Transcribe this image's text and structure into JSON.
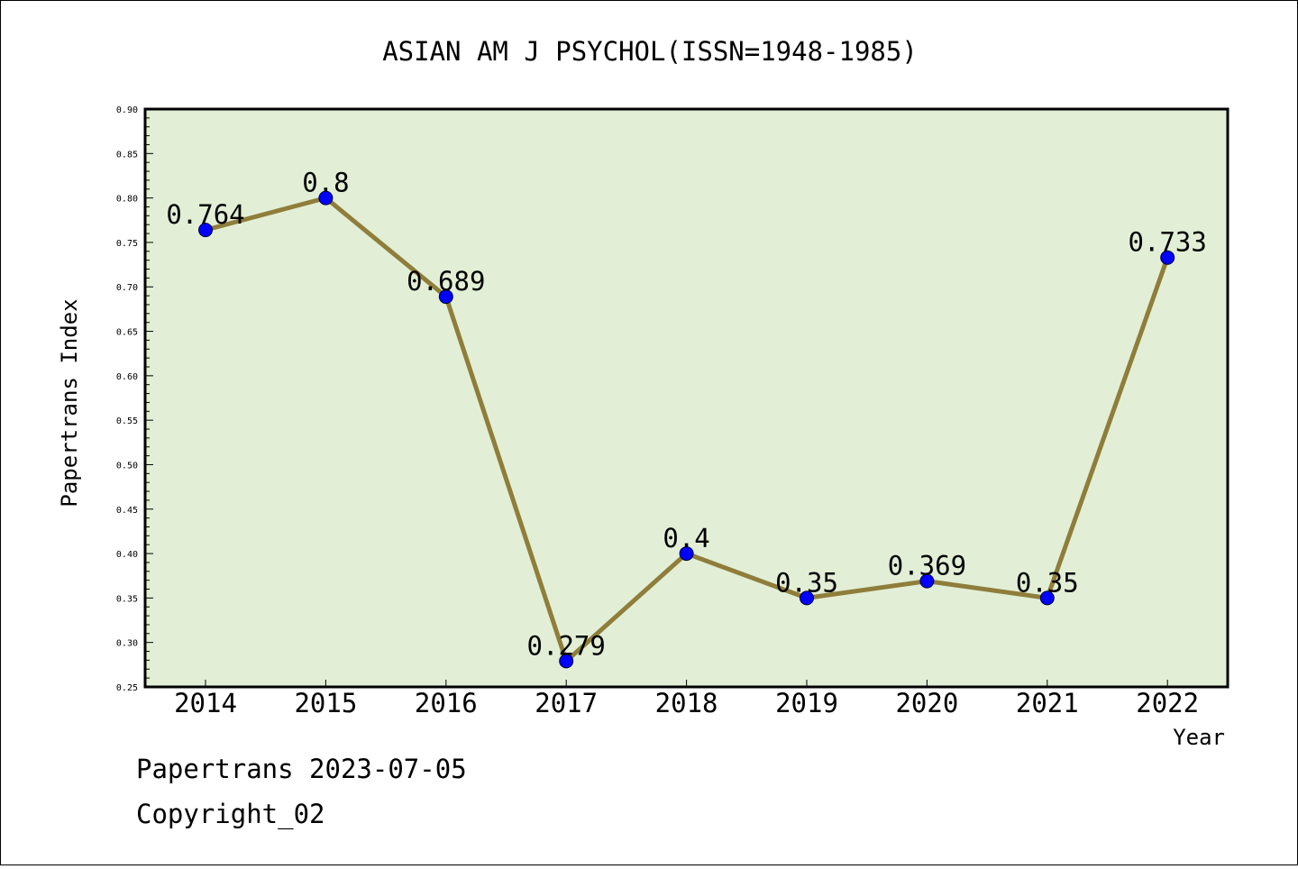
{
  "chart_data": {
    "type": "line",
    "title": "ASIAN AM J PSYCHOL(ISSN=1948-1985)",
    "xlabel": "Year",
    "ylabel": "Papertrans Index",
    "categories": [
      "2014",
      "2015",
      "2016",
      "2017",
      "2018",
      "2019",
      "2020",
      "2021",
      "2022"
    ],
    "values": [
      0.764,
      0.8,
      0.689,
      0.279,
      0.4,
      0.35,
      0.369,
      0.35,
      0.733
    ],
    "data_labels": [
      "0.764",
      "0.8",
      "0.689",
      "0.279",
      "0.4",
      "0.35",
      "0.369",
      "0.35",
      "0.733"
    ],
    "ylim": [
      0.25,
      0.9
    ],
    "yticks": [
      "0.25",
      "0.30",
      "0.35",
      "0.40",
      "0.45",
      "0.50",
      "0.55",
      "0.60",
      "0.65",
      "0.70",
      "0.75",
      "0.80",
      "0.85",
      "0.90"
    ],
    "grid": false,
    "colors": {
      "plot_background": "#e2efd6",
      "line": "#8f7d3a",
      "marker": "#0000ff"
    }
  },
  "footer": {
    "line1": "Papertrans 2023-07-05",
    "line2": "Copyright_02"
  }
}
